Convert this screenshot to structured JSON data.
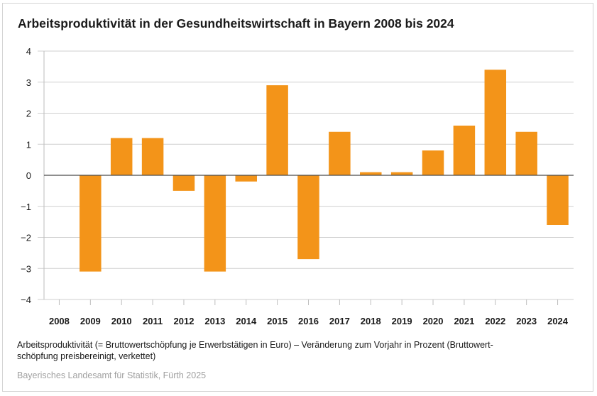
{
  "chart_data": {
    "type": "bar",
    "title": "Arbeitsproduktivität in der Gesundheitswirtschaft in Bayern 2008 bis 2024",
    "xlabel": "",
    "ylabel": "",
    "categories": [
      "2008",
      "2009",
      "2010",
      "2011",
      "2012",
      "2013",
      "2014",
      "2015",
      "2016",
      "2017",
      "2018",
      "2019",
      "2020",
      "2021",
      "2022",
      "2023",
      "2024"
    ],
    "values": [
      0,
      -3.1,
      1.2,
      1.2,
      -0.5,
      -3.1,
      -0.2,
      2.9,
      -2.7,
      1.4,
      0.1,
      0.1,
      0.8,
      1.6,
      3.4,
      1.4,
      -1.6
    ],
    "ylim": [
      -4,
      4
    ],
    "yticks": [
      4,
      3,
      2,
      1,
      0,
      -1,
      -2,
      -3,
      -4
    ],
    "ytick_labels": [
      "4",
      "3",
      "2",
      "1",
      "0",
      "−1",
      "−2",
      "−3",
      "−4"
    ],
    "grid": true,
    "legend": "none",
    "bar_color": "#f39419",
    "note": "Arbeitsproduktivität (= Bruttowertschöpfung je Erwerbstätigen in Euro) – Veränderung zum Vorjahr in Prozent (Bruttowert-schöpfung preisbereinigt, verkettet)",
    "note_line1": "Arbeitsproduktivität (= Bruttowertschöpfung je Erwerbstätigen in Euro) – Veränderung zum Vorjahr in Prozent (Bruttowert-",
    "note_line2": "schöpfung preisbereinigt, verkettet)",
    "source": "Bayerisches Landesamt für Statistik, Fürth 2025"
  }
}
